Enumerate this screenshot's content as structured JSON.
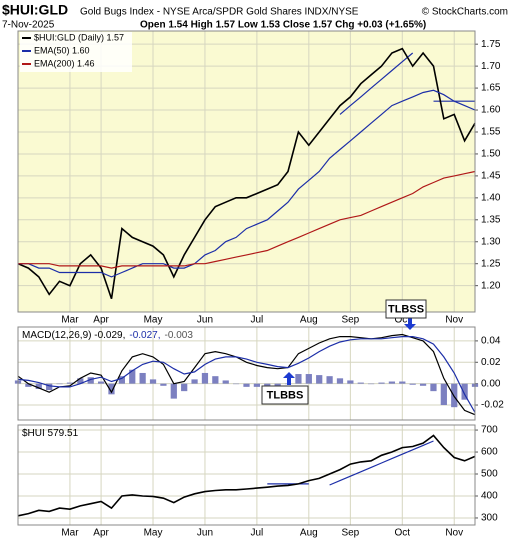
{
  "chart_data": [
    {
      "type": "line",
      "title": "$HUI:GLD",
      "subtitle": "Gold Bugs Index - NYSE Arca/SPDR Gold Shares INDX/NYSE",
      "source": "© StockCharts.com",
      "date": "7-Nov-2025",
      "quote": "Open 1.54  High 1.57  Low 1.53  Close 1.57  Chg +0.03 (+1.65%)",
      "categories": [
        null,
        null,
        null,
        null,
        null,
        "Mar",
        null,
        null,
        "Apr",
        null,
        null,
        null,
        null,
        "May",
        null,
        null,
        null,
        null,
        "Jun",
        null,
        null,
        null,
        null,
        "Jul",
        null,
        null,
        null,
        null,
        "Aug",
        null,
        null,
        null,
        "Sep",
        null,
        null,
        null,
        null,
        "Oct",
        null,
        null,
        null,
        null,
        "Nov",
        null,
        null
      ],
      "ylim": [
        1.14,
        1.78
      ],
      "yticks": [
        {
          "value": 1.2,
          "label": "1.20"
        },
        1.25,
        {
          "value": 1.3,
          "label": "1.30"
        },
        1.35,
        {
          "value": 1.4,
          "label": "1.40"
        },
        1.45,
        {
          "value": 1.5,
          "label": "1.50"
        },
        1.55,
        {
          "value": 1.6,
          "label": "1.60"
        },
        1.65,
        {
          "value": 1.7,
          "label": "1.70"
        },
        1.75
      ],
      "grid": true,
      "legend": "upper left",
      "series": [
        {
          "name": "$HUI:GLD (Daily) 1.57",
          "color": "#000000",
          "values": [
            1.25,
            1.24,
            1.22,
            1.18,
            1.21,
            1.2,
            1.25,
            1.27,
            1.24,
            1.17,
            1.33,
            1.31,
            1.3,
            1.29,
            1.27,
            1.22,
            1.27,
            1.31,
            1.35,
            1.38,
            1.39,
            1.4,
            1.4,
            1.41,
            1.42,
            1.43,
            1.46,
            1.55,
            1.52,
            1.55,
            1.58,
            1.61,
            1.63,
            1.66,
            1.68,
            1.7,
            1.73,
            1.74,
            1.7,
            1.73,
            1.7,
            1.58,
            1.59,
            1.53,
            1.57
          ]
        },
        {
          "name": "EMA(50) 1.60",
          "color": "#1c2ea8",
          "values": [
            1.25,
            1.25,
            1.24,
            1.24,
            1.23,
            1.23,
            1.23,
            1.23,
            1.23,
            1.22,
            1.23,
            1.24,
            1.25,
            1.25,
            1.25,
            1.24,
            1.24,
            1.25,
            1.27,
            1.28,
            1.3,
            1.31,
            1.33,
            1.34,
            1.35,
            1.37,
            1.39,
            1.42,
            1.44,
            1.46,
            1.49,
            1.51,
            1.53,
            1.55,
            1.57,
            1.59,
            1.61,
            1.62,
            1.63,
            1.64,
            1.645,
            1.635,
            1.62,
            1.61,
            1.6
          ]
        },
        {
          "name": "EMA(200) 1.46",
          "color": "#b01818",
          "values": [
            1.25,
            1.25,
            1.25,
            1.25,
            1.245,
            1.245,
            1.245,
            1.245,
            1.245,
            1.24,
            1.245,
            1.245,
            1.245,
            1.245,
            1.245,
            1.245,
            1.245,
            1.25,
            1.25,
            1.255,
            1.26,
            1.265,
            1.27,
            1.275,
            1.28,
            1.29,
            1.3,
            1.31,
            1.32,
            1.33,
            1.34,
            1.35,
            1.355,
            1.36,
            1.37,
            1.38,
            1.39,
            1.4,
            1.41,
            1.425,
            1.435,
            1.445,
            1.45,
            1.455,
            1.46
          ]
        }
      ],
      "trendlines": [
        {
          "color": "#1c2ea8",
          "values": [
            null,
            null,
            null,
            null,
            null,
            null,
            null,
            null,
            null,
            null,
            null,
            null,
            null,
            null,
            null,
            null,
            null,
            null,
            null,
            null,
            null,
            null,
            null,
            null,
            null,
            null,
            null,
            null,
            null,
            null,
            null,
            1.59,
            1.61,
            1.63,
            1.65,
            1.67,
            1.69,
            1.71,
            1.73,
            null,
            null,
            null,
            null,
            null,
            null
          ]
        },
        {
          "color": "#1c2ea8",
          "values": [
            null,
            null,
            null,
            null,
            null,
            null,
            null,
            null,
            null,
            null,
            null,
            null,
            null,
            null,
            null,
            null,
            null,
            null,
            null,
            null,
            null,
            null,
            null,
            null,
            null,
            null,
            null,
            null,
            null,
            null,
            null,
            null,
            null,
            null,
            null,
            null,
            null,
            null,
            null,
            null,
            1.62,
            1.62,
            1.62,
            1.62,
            1.62
          ]
        }
      ]
    },
    {
      "type": "line",
      "ylim": [
        -0.034,
        0.053
      ],
      "yticks": [
        -0.02,
        {
          "value": 0,
          "label": "0.00"
        },
        0.02,
        0.04
      ],
      "grid": true,
      "legend": "upper left",
      "annotations": [
        "TLBBS",
        "TLBSS"
      ],
      "series": [
        {
          "name": "-0.003",
          "type": "bar",
          "color": "#7c80c0",
          "values": [
            0.003,
            -0.003,
            -0.005,
            -0.006,
            0.0,
            0.001,
            0.005,
            0.006,
            0.002,
            -0.01,
            0.007,
            0.013,
            0.01,
            0.004,
            -0.002,
            -0.014,
            -0.007,
            0.004,
            0.01,
            0.007,
            0.003,
            0.0,
            -0.003,
            -0.003,
            -0.003,
            -0.002,
            0.0,
            0.009,
            0.009,
            0.008,
            0.007,
            0.005,
            0.003,
            0.001,
            0.0,
            0.001,
            0.002,
            0.002,
            -0.001,
            -0.002,
            -0.007,
            -0.02,
            -0.022,
            -0.015,
            -0.003
          ]
        },
        {
          "name": "MACD(12,26,9) -0.029,",
          "color": "#000000",
          "values": [
            0.007,
            0.0,
            -0.004,
            -0.008,
            -0.003,
            -0.002,
            0.005,
            0.01,
            0.008,
            -0.008,
            0.012,
            0.025,
            0.028,
            0.025,
            0.018,
            0.0,
            0.002,
            0.015,
            0.028,
            0.03,
            0.028,
            0.025,
            0.02,
            0.017,
            0.015,
            0.014,
            0.015,
            0.028,
            0.033,
            0.038,
            0.042,
            0.044,
            0.044,
            0.043,
            0.042,
            0.043,
            0.045,
            0.046,
            0.043,
            0.04,
            0.03,
            0.005,
            -0.012,
            -0.025,
            -0.029
          ]
        },
        {
          "name": "-0.027,",
          "color": "#1c2ea8",
          "values": [
            0.004,
            0.003,
            0.001,
            -0.002,
            -0.003,
            -0.003,
            0.0,
            0.004,
            0.006,
            0.002,
            0.005,
            0.012,
            0.018,
            0.021,
            0.02,
            0.014,
            0.009,
            0.011,
            0.018,
            0.023,
            0.025,
            0.025,
            0.023,
            0.02,
            0.018,
            0.016,
            0.015,
            0.019,
            0.024,
            0.03,
            0.035,
            0.039,
            0.041,
            0.042,
            0.042,
            0.042,
            0.043,
            0.044,
            0.044,
            0.042,
            0.037,
            0.025,
            0.01,
            -0.01,
            -0.027
          ]
        }
      ]
    },
    {
      "type": "line",
      "categories": [
        null,
        null,
        null,
        null,
        null,
        "Mar",
        null,
        null,
        "Apr",
        null,
        null,
        null,
        null,
        "May",
        null,
        null,
        null,
        null,
        "Jun",
        null,
        null,
        null,
        null,
        "Jul",
        null,
        null,
        null,
        null,
        "Aug",
        null,
        null,
        null,
        "Sep",
        null,
        null,
        null,
        null,
        "Oct",
        null,
        null,
        null,
        null,
        "Nov",
        null,
        null
      ],
      "ylim": [
        268,
        723
      ],
      "yticks": [
        300,
        400,
        500,
        600,
        700
      ],
      "grid": true,
      "legend": "upper left",
      "series": [
        {
          "name": "$HUI 579.51",
          "color": "#000000",
          "values": [
            310,
            320,
            335,
            330,
            345,
            340,
            355,
            365,
            375,
            345,
            400,
            405,
            400,
            398,
            390,
            370,
            395,
            410,
            420,
            425,
            428,
            428,
            432,
            436,
            440,
            445,
            448,
            455,
            470,
            480,
            500,
            520,
            545,
            555,
            560,
            585,
            600,
            620,
            625,
            640,
            675,
            620,
            575,
            560,
            580
          ]
        }
      ],
      "trendlines": [
        {
          "color": "#1c2ea8",
          "values": [
            null,
            null,
            null,
            null,
            null,
            null,
            null,
            null,
            null,
            null,
            null,
            null,
            null,
            null,
            null,
            null,
            null,
            null,
            null,
            null,
            null,
            null,
            null,
            null,
            455,
            455,
            455,
            455,
            455,
            null,
            null,
            null,
            null,
            null,
            null,
            null,
            null,
            null,
            null,
            null,
            null,
            null,
            null,
            null,
            null
          ]
        },
        {
          "color": "#1c2ea8",
          "values": [
            null,
            null,
            null,
            null,
            null,
            null,
            null,
            null,
            null,
            null,
            null,
            null,
            null,
            null,
            null,
            null,
            null,
            null,
            null,
            null,
            null,
            null,
            null,
            null,
            null,
            null,
            null,
            null,
            null,
            null,
            450,
            470,
            490,
            510,
            530,
            550,
            570,
            590,
            610,
            630,
            650,
            null,
            null,
            null,
            null
          ]
        }
      ]
    }
  ]
}
